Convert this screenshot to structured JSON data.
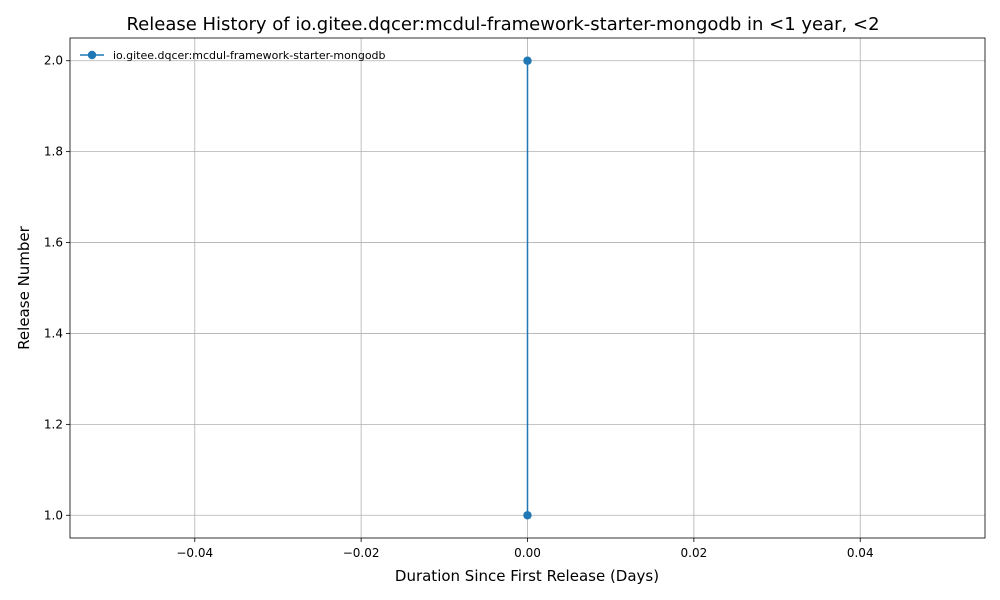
{
  "chart_data": {
    "type": "line",
    "title": "Release History of io.gitee.dqcer:mcdul-framework-starter-mongodb in <1 year, <2",
    "xlabel": "Duration Since First Release (Days)",
    "ylabel": "Release Number",
    "xlim": [
      -0.055,
      0.055
    ],
    "ylim": [
      0.95,
      2.05
    ],
    "xticks": [
      -0.04,
      -0.02,
      0.0,
      0.02,
      0.04
    ],
    "xtick_labels": [
      "−0.04",
      "−0.02",
      "0.00",
      "0.02",
      "0.04"
    ],
    "yticks": [
      1.0,
      1.2,
      1.4,
      1.6,
      1.8,
      2.0
    ],
    "ytick_labels": [
      "1.0",
      "1.2",
      "1.4",
      "1.6",
      "1.8",
      "2.0"
    ],
    "grid": true,
    "legend_position": "top-left",
    "series": [
      {
        "name": "io.gitee.dqcer:mcdul-framework-starter-mongodb",
        "color": "#1f77b4",
        "marker": "circle",
        "x": [
          0,
          0
        ],
        "y": [
          1,
          2
        ]
      }
    ]
  }
}
